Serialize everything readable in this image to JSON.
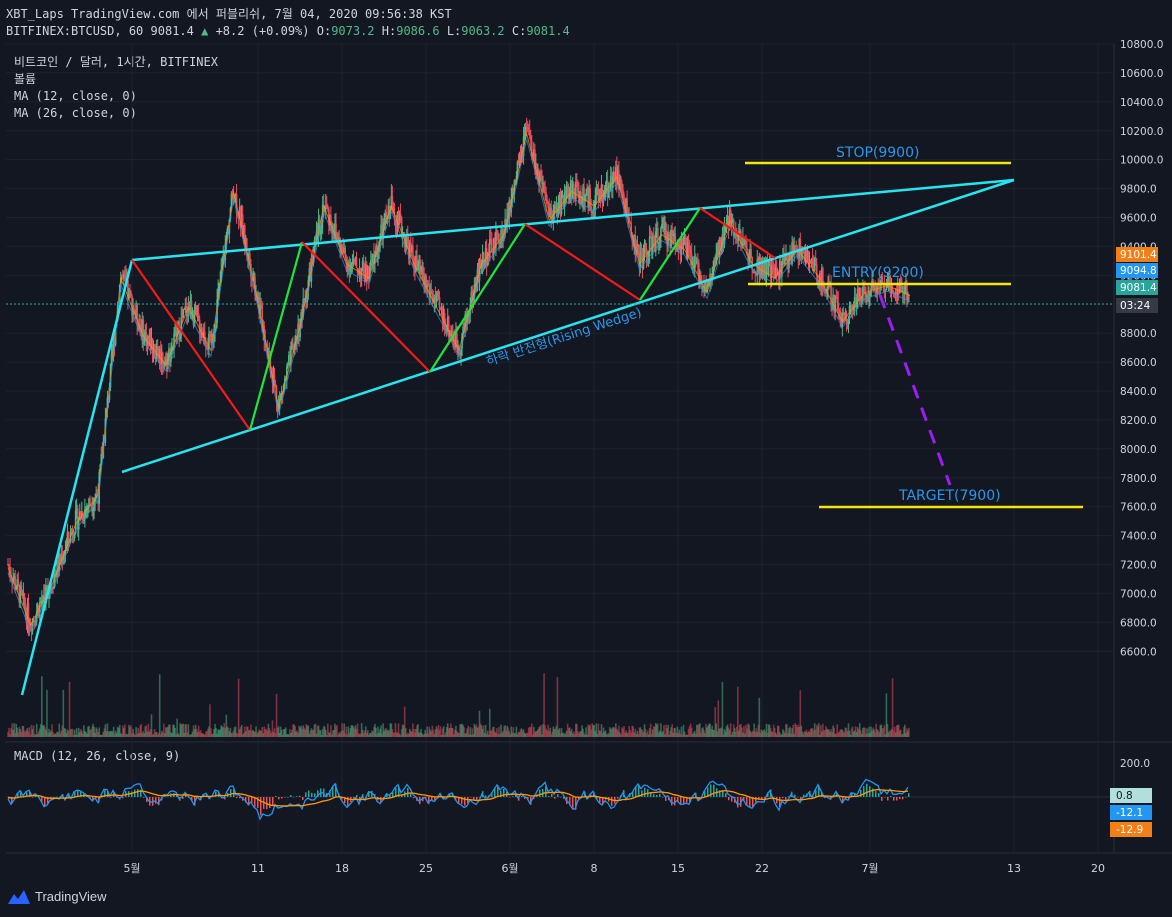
{
  "header": {
    "line1": "XBT_Laps TradingView.com 에서 퍼블리쉬, 7월 04, 2020 09:56:38 KST",
    "symbol": "BITFINEX:BTCUSD, 60",
    "last": "9081.4",
    "change": "+8.2 (+0.09%)",
    "o_label": "O:",
    "o": "9073.2",
    "h_label": "H:",
    "h": "9086.6",
    "l_label": "L:",
    "l": "9063.2",
    "c_label": "C:",
    "c": "9081.4"
  },
  "legend": [
    "비트코인 / 달러, 1시간, BITFINEX",
    "볼륨",
    "MA (12, close, 0)",
    "MA (26, close, 0)"
  ],
  "macd_legend": "MACD (12, 26, close, 9)",
  "brand": "TradingView",
  "colors": {
    "bg": "#131722",
    "up": "#53b987",
    "down": "#eb4d5c",
    "wedge": "#26e5ef",
    "levels": "#f5e50e",
    "target_path": "#9c1ff0",
    "label": "#2b97e8"
  },
  "chart_data": {
    "type": "line",
    "title": "비트코인 / 달러, 1시간, BITFINEX",
    "ylim": [
      6000,
      10800
    ],
    "yticks": [
      "10800.0",
      "10600.0",
      "10400.0",
      "10200.0",
      "10000.0",
      "9800.0",
      "9600.0",
      "9400.0",
      "9200.0",
      "9000.0",
      "8800.0",
      "8600.0",
      "8400.0",
      "8200.0",
      "8000.0",
      "7800.0",
      "7600.0",
      "7400.0",
      "7200.0",
      "7000.0",
      "6800.0",
      "6600.0"
    ],
    "xticks": [
      "5월",
      "11",
      "18",
      "25",
      "6월",
      "8",
      "15",
      "22",
      "7월",
      "13",
      "20"
    ],
    "price_badges": [
      {
        "label": "9101.4",
        "color": "#f57f17",
        "value": 9101.4
      },
      {
        "label": "9094.8",
        "color": "#2196f3",
        "value": 9094.8
      },
      {
        "label": "9081.4",
        "color": "#26a69a",
        "value": 9081.4
      },
      {
        "label": "03:24",
        "color": "#363a45",
        "value": 8990
      }
    ],
    "series": [
      {
        "name": "BTCUSD",
        "points": [
          [
            0,
            7200
          ],
          [
            1,
            6800
          ],
          [
            2,
            7100
          ],
          [
            3,
            7500
          ],
          [
            4,
            7700
          ],
          [
            5,
            9200
          ],
          [
            6,
            8800
          ],
          [
            7,
            8600
          ],
          [
            8,
            9000
          ],
          [
            9,
            8700
          ],
          [
            10,
            9800
          ],
          [
            11,
            9100
          ],
          [
            12,
            8300
          ],
          [
            13,
            8900
          ],
          [
            14,
            9700
          ],
          [
            15,
            9300
          ],
          [
            16,
            9200
          ],
          [
            17,
            9700
          ],
          [
            18,
            9300
          ],
          [
            19,
            9000
          ],
          [
            20,
            8700
          ],
          [
            21,
            9300
          ],
          [
            22,
            9500
          ],
          [
            23,
            10200
          ],
          [
            24,
            9600
          ],
          [
            25,
            9800
          ],
          [
            26,
            9700
          ],
          [
            27,
            9900
          ],
          [
            28,
            9300
          ],
          [
            29,
            9500
          ],
          [
            30,
            9400
          ],
          [
            31,
            9100
          ],
          [
            32,
            9600
          ],
          [
            33,
            9300
          ],
          [
            34,
            9200
          ],
          [
            35,
            9400
          ],
          [
            36,
            9200
          ],
          [
            37,
            8900
          ],
          [
            38,
            9100
          ],
          [
            39,
            9150
          ],
          [
            40,
            9080
          ]
        ]
      }
    ],
    "annotations": [
      {
        "text": "STOP(9900)",
        "value": 9900
      },
      {
        "text": "ENTRY(9200)",
        "value": 9200
      },
      {
        "text": "TARGET(7900)",
        "value": 7900
      },
      {
        "text": "하락 반전형(Rising Wedge)"
      }
    ],
    "macd": {
      "yticks": [
        "200.0"
      ],
      "badges": [
        {
          "label": "0.8",
          "color": "#b2dfdb"
        },
        {
          "label": "-12.1",
          "color": "#2196f3"
        },
        {
          "label": "-12.9",
          "color": "#f57f17"
        }
      ]
    }
  }
}
